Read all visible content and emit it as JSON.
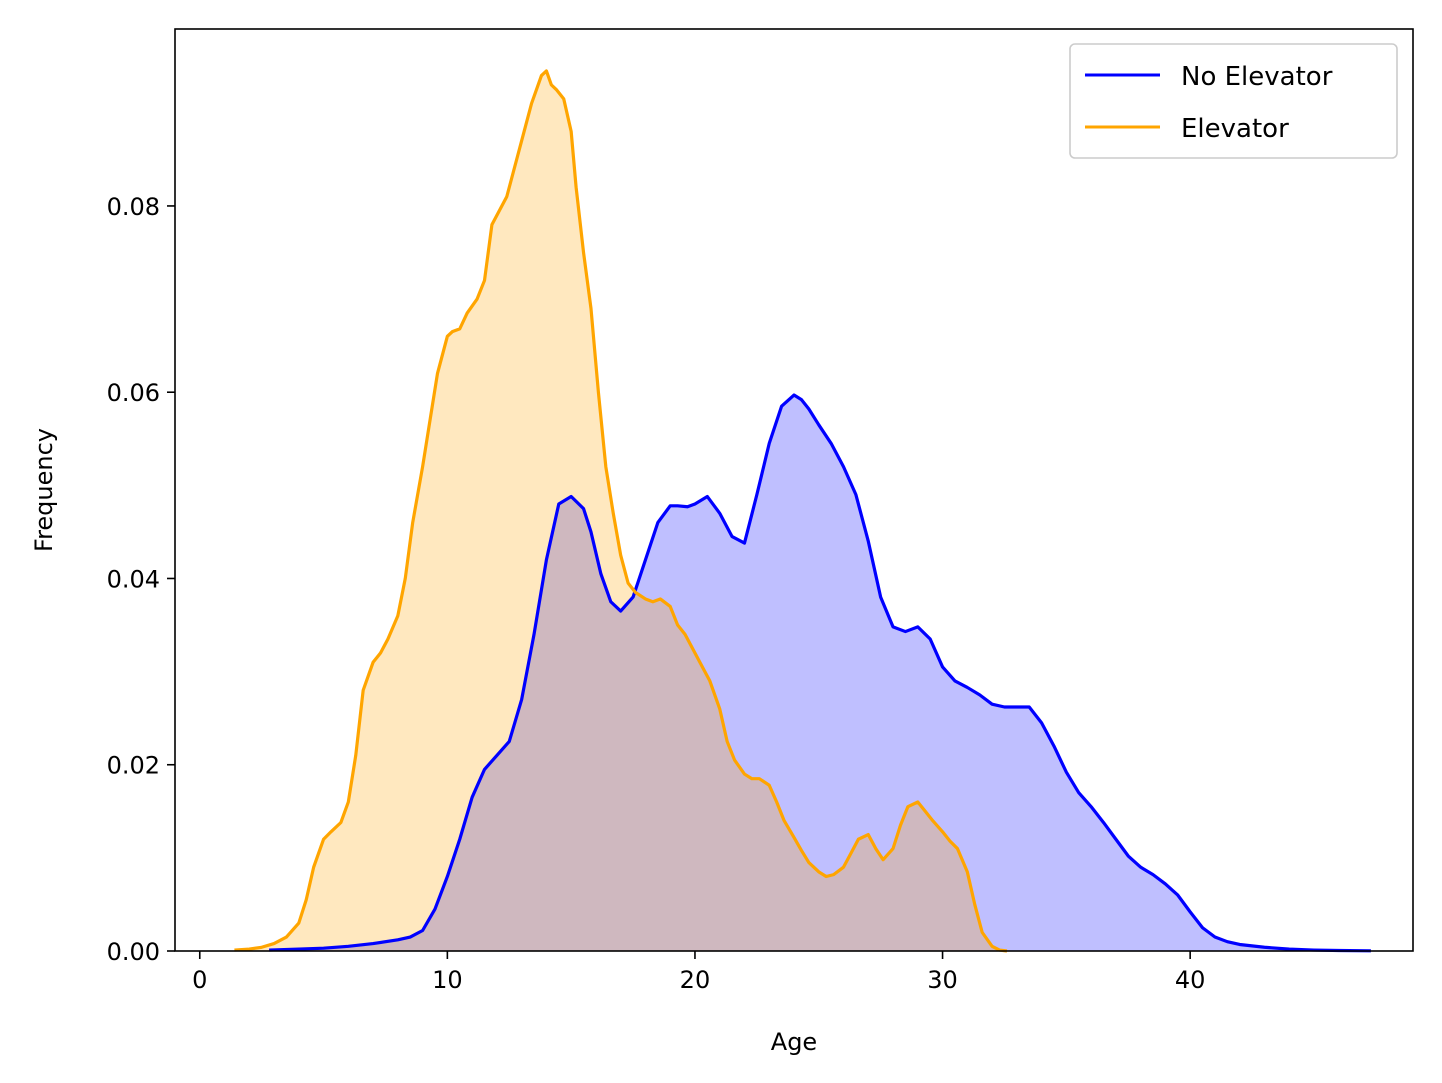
{
  "chart_data": {
    "type": "area",
    "title": "",
    "xlabel": "Age",
    "ylabel": "Frequency",
    "xlim": [
      -1,
      49
    ],
    "ylim": [
      0,
      0.099
    ],
    "xticks": [
      0,
      10,
      20,
      30,
      40
    ],
    "yticks": [
      0.0,
      0.02,
      0.04,
      0.06,
      0.08
    ],
    "ytick_labels": [
      "0.00",
      "0.02",
      "0.04",
      "0.06",
      "0.08"
    ],
    "xtick_labels": [
      "0",
      "10",
      "20",
      "30",
      "40"
    ],
    "grid": false,
    "legend_position": "top-right",
    "series": [
      {
        "name": "No Elevator",
        "color": "#0000ff",
        "fill": "#bfbfff",
        "x": [
          2.8,
          4,
          5,
          6,
          7,
          8,
          8.5,
          9,
          9.5,
          10,
          10.5,
          11,
          11.5,
          12,
          12.5,
          13,
          13.5,
          14,
          14.5,
          15,
          15.5,
          15.8,
          16.2,
          16.6,
          17,
          17.5,
          18,
          18.5,
          19,
          19.3,
          19.7,
          20,
          20.5,
          21,
          21.5,
          22,
          22.5,
          23,
          23.5,
          24,
          24.3,
          24.6,
          25,
          25.5,
          26,
          26.5,
          27,
          27.5,
          28,
          28.5,
          29,
          29.5,
          30,
          30.5,
          31,
          31.5,
          32,
          32.5,
          33,
          33.5,
          34,
          34.5,
          35,
          35.5,
          36,
          36.5,
          37,
          37.5,
          38,
          38.5,
          39,
          39.5,
          40,
          40.5,
          41,
          41.5,
          42,
          43,
          44,
          45,
          46,
          47.3
        ],
        "values": [
          0.0001,
          0.0002,
          0.0003,
          0.0005,
          0.0008,
          0.0012,
          0.0015,
          0.0022,
          0.0045,
          0.008,
          0.012,
          0.0165,
          0.0195,
          0.021,
          0.0225,
          0.027,
          0.034,
          0.042,
          0.048,
          0.0488,
          0.0475,
          0.045,
          0.0405,
          0.0375,
          0.0365,
          0.038,
          0.042,
          0.046,
          0.0478,
          0.0478,
          0.0477,
          0.048,
          0.0488,
          0.047,
          0.0445,
          0.0438,
          0.049,
          0.0545,
          0.0585,
          0.0597,
          0.0592,
          0.0582,
          0.0565,
          0.0545,
          0.052,
          0.049,
          0.044,
          0.038,
          0.0348,
          0.0343,
          0.0348,
          0.0335,
          0.0305,
          0.029,
          0.0283,
          0.0275,
          0.0265,
          0.0262,
          0.0262,
          0.0262,
          0.0245,
          0.022,
          0.0192,
          0.017,
          0.0155,
          0.0138,
          0.012,
          0.0102,
          0.009,
          0.0082,
          0.0072,
          0.006,
          0.0042,
          0.0025,
          0.0015,
          0.001,
          0.0007,
          0.0004,
          0.0002,
          0.0001,
          5e-05,
          2e-05
        ]
      },
      {
        "name": "Elevator",
        "color": "#ffa500",
        "fill": "#ffe5bf",
        "x": [
          1.4,
          2,
          2.5,
          3,
          3.5,
          4,
          4.3,
          4.6,
          5,
          5.3,
          5.7,
          6,
          6.3,
          6.6,
          7,
          7.3,
          7.6,
          8,
          8.3,
          8.6,
          9,
          9.3,
          9.6,
          10,
          10.2,
          10.5,
          10.8,
          11.2,
          11.5,
          11.8,
          12.1,
          12.4,
          12.8,
          13.1,
          13.4,
          13.8,
          14.0,
          14.2,
          14.4,
          14.7,
          15.0,
          15.2,
          15.5,
          15.8,
          16.1,
          16.4,
          16.7,
          17.0,
          17.3,
          17.6,
          18.0,
          18.3,
          18.6,
          19.0,
          19.3,
          19.6,
          20.0,
          20.3,
          20.6,
          21.0,
          21.3,
          21.6,
          22.0,
          22.3,
          22.6,
          23.0,
          23.3,
          23.6,
          24.0,
          24.3,
          24.6,
          25.0,
          25.3,
          25.6,
          26.0,
          26.3,
          26.6,
          27.0,
          27.3,
          27.6,
          28.0,
          28.3,
          28.6,
          29.0,
          29.3,
          29.6,
          30.0,
          30.3,
          30.6,
          31.0,
          31.3,
          31.6,
          32.0,
          32.3,
          32.6
        ],
        "values": [
          0.0001,
          0.0002,
          0.0004,
          0.0008,
          0.0015,
          0.003,
          0.0055,
          0.009,
          0.012,
          0.0128,
          0.0138,
          0.016,
          0.021,
          0.028,
          0.031,
          0.032,
          0.0335,
          0.036,
          0.04,
          0.046,
          0.052,
          0.057,
          0.062,
          0.066,
          0.0665,
          0.0668,
          0.0685,
          0.07,
          0.072,
          0.078,
          0.0795,
          0.081,
          0.085,
          0.088,
          0.091,
          0.094,
          0.0945,
          0.093,
          0.0925,
          0.0915,
          0.088,
          0.082,
          0.075,
          0.069,
          0.06,
          0.052,
          0.047,
          0.0425,
          0.0395,
          0.0385,
          0.0378,
          0.0375,
          0.0378,
          0.037,
          0.035,
          0.034,
          0.032,
          0.0305,
          0.029,
          0.026,
          0.0225,
          0.0205,
          0.019,
          0.0185,
          0.0185,
          0.0178,
          0.016,
          0.014,
          0.0122,
          0.0108,
          0.0095,
          0.0085,
          0.008,
          0.0082,
          0.009,
          0.0105,
          0.012,
          0.0125,
          0.011,
          0.0098,
          0.011,
          0.0135,
          0.0155,
          0.016,
          0.015,
          0.014,
          0.0128,
          0.0118,
          0.011,
          0.0085,
          0.005,
          0.002,
          0.0005,
          0.0001,
          0.0
        ]
      }
    ]
  }
}
